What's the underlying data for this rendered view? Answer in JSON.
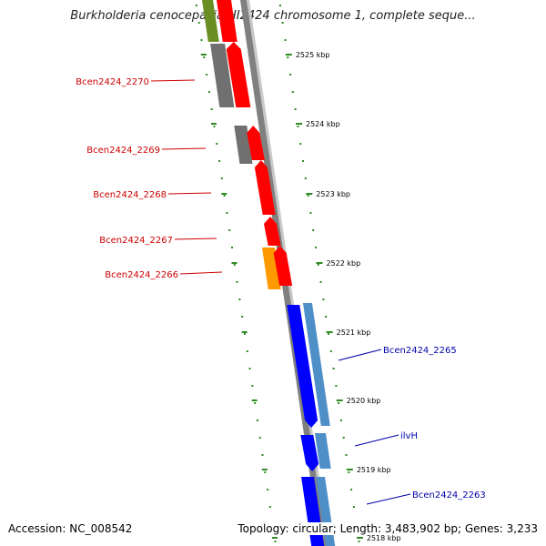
{
  "title": "Burkholderia cenocepacia HI2424 chromosome 1, complete seque...",
  "footer": {
    "accession": "Accession: NC_008542",
    "info": "Topology: circular; Length: 3,483,902 bp; Genes: 3,233"
  },
  "colors": {
    "backbone": "#808080",
    "tick": "#2e8b22",
    "gene_red": "#ff0000",
    "gene_grey": "#707070",
    "gene_orange": "#ff9900",
    "gene_olive": "#6b8e23",
    "gene_blue": "#0000ff",
    "gene_steel": "#4f8fc8",
    "label_red": "#cc0000",
    "label_blue": "#0000aa"
  },
  "kbp_labels": [
    "2525 kbp",
    "2524 kbp",
    "2523 kbp",
    "2522 kbp",
    "2521 kbp",
    "2520 kbp",
    "2519 kbp",
    "2518 kbp"
  ],
  "gene_labels_left": [
    "Bcen2424_2270",
    "Bcen2424_2269",
    "Bcen2424_2268",
    "Bcen2424_2267",
    "Bcen2424_2266"
  ],
  "gene_labels_right": [
    "Bcen2424_2265",
    "ilvH",
    "Bcen2424_2263"
  ]
}
